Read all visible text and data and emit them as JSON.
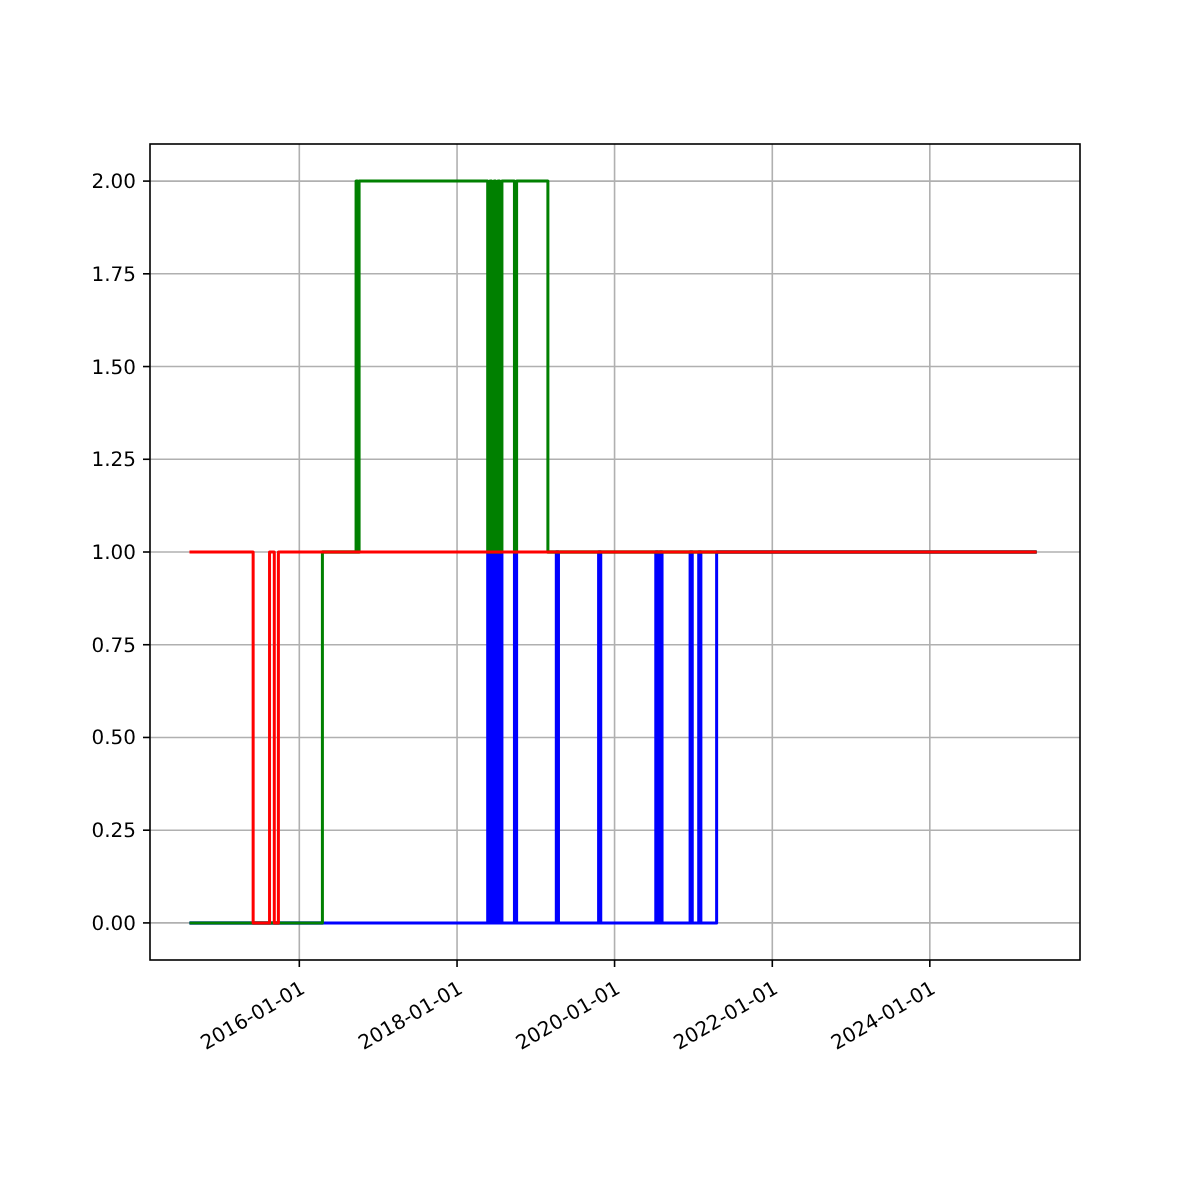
{
  "chart_data": {
    "type": "step",
    "xlim": [
      "2014-02-08",
      "2025-11-27"
    ],
    "ylim": [
      -0.1,
      2.1
    ],
    "xticks": [
      "2016-01-01",
      "2018-01-01",
      "2020-01-01",
      "2022-01-01",
      "2024-01-01"
    ],
    "yticks": [
      {
        "value": 0,
        "label": "0.00"
      },
      {
        "value": 0.25,
        "label": "0.25"
      },
      {
        "value": 0.5,
        "label": "0.50"
      },
      {
        "value": 0.75,
        "label": "0.75"
      },
      {
        "value": 1,
        "label": "1.00"
      },
      {
        "value": 1.25,
        "label": "1.25"
      },
      {
        "value": 1.5,
        "label": "1.50"
      },
      {
        "value": 1.75,
        "label": "1.75"
      },
      {
        "value": 2,
        "label": "2.00"
      }
    ],
    "grid": true,
    "line_style": "solid",
    "series": [
      {
        "color": "#0000ff",
        "x": [
          "2014-08-10",
          "2018-05-23",
          "2018-06-02",
          "2018-06-11",
          "2018-06-21",
          "2018-06-29",
          "2018-07-09",
          "2018-07-18",
          "2018-07-28",
          "2018-09-24",
          "2018-10-04",
          "2019-04-06",
          "2019-04-16",
          "2019-10-19",
          "2019-10-29",
          "2020-07-10",
          "2020-07-20",
          "2020-07-29",
          "2020-08-08",
          "2020-12-16",
          "2020-12-26",
          "2021-01-25",
          "2021-02-04",
          "2021-04-18",
          "2025-05-10"
        ],
        "values": [
          0,
          1,
          0,
          1,
          0,
          1,
          0,
          1,
          0,
          1,
          0,
          1,
          0,
          1,
          0,
          1,
          0,
          1,
          0,
          1,
          0,
          1,
          0,
          1,
          1
        ]
      },
      {
        "color": "#008000",
        "x": [
          "2014-08-10",
          "2016-04-17",
          "2016-09-20",
          "2016-09-27",
          "2016-10-04",
          "2018-05-23",
          "2018-06-02",
          "2018-06-11",
          "2018-06-21",
          "2018-06-29",
          "2018-07-09",
          "2018-07-18",
          "2018-07-28",
          "2018-09-24",
          "2018-10-04",
          "2019-02-26",
          "2025-05-10"
        ],
        "values": [
          0,
          1,
          2,
          1,
          2,
          1,
          2,
          1,
          2,
          1,
          2,
          1,
          2,
          1,
          2,
          1,
          1
        ]
      },
      {
        "color": "#ff0000",
        "x": [
          "2014-08-10",
          "2015-06-01",
          "2015-08-16",
          "2015-09-07",
          "2015-09-26",
          "2025-05-10"
        ],
        "values": [
          1,
          0,
          1,
          0,
          1,
          1
        ]
      }
    ]
  }
}
